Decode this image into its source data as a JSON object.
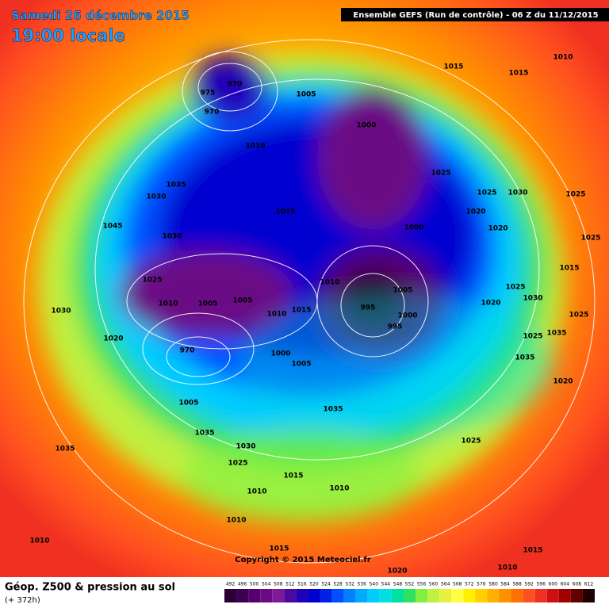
{
  "header": {
    "title": "Samedi 26 décembre 2015",
    "time": "19:00 locale",
    "model": "Ensemble GEFS  (Run de contrôle)  -  06 Z du 11/12/2015"
  },
  "footer": {
    "product": "Géop. Z500 & pression au sol",
    "lead": "(+ 372h)",
    "copyright": "Copyright © 2015 Meteociel.fr"
  },
  "colorbar": {
    "values": [
      492,
      496,
      500,
      504,
      508,
      512,
      516,
      520,
      524,
      528,
      532,
      536,
      540,
      544,
      548,
      552,
      556,
      560,
      564,
      568,
      572,
      576,
      580,
      584,
      588,
      592,
      596,
      600,
      604,
      608,
      612
    ],
    "colors": [
      "#2a0033",
      "#3d0052",
      "#55006e",
      "#6a0a85",
      "#7d1a97",
      "#4a0aa0",
      "#2000b8",
      "#0000d0",
      "#0020e8",
      "#0050ff",
      "#0080ff",
      "#00aaff",
      "#00ccff",
      "#00e0e0",
      "#00e0a0",
      "#30e060",
      "#80f040",
      "#c0f040",
      "#e8f040",
      "#ffff40",
      "#fff000",
      "#ffd000",
      "#ffb000",
      "#ff9000",
      "#ff7000",
      "#ff5020",
      "#f03020",
      "#d01010",
      "#a00000",
      "#600000",
      "#200000"
    ]
  },
  "isobars": [
    "1015",
    "1015",
    "1010",
    "970",
    "975",
    "970",
    "1005",
    "1000",
    "1025",
    "1010",
    "1035",
    "1030",
    "1015",
    "1025",
    "1030",
    "1025",
    "1020",
    "1020",
    "1000",
    "1030",
    "1045",
    "1025",
    "1015",
    "1025",
    "1010",
    "1005",
    "1010",
    "1005",
    "1005",
    "1015",
    "1010",
    "995",
    "1000",
    "995",
    "1025",
    "1030",
    "1020",
    "1025",
    "1030",
    "1020",
    "970",
    "1000",
    "1005",
    "1035",
    "1025",
    "1035",
    "1020",
    "1005",
    "1035",
    "1035",
    "1030",
    "1025",
    "1025",
    "1015",
    "1035",
    "1010",
    "1010",
    "1010",
    "1010",
    "1015",
    "1015",
    "1010",
    "1020"
  ]
}
